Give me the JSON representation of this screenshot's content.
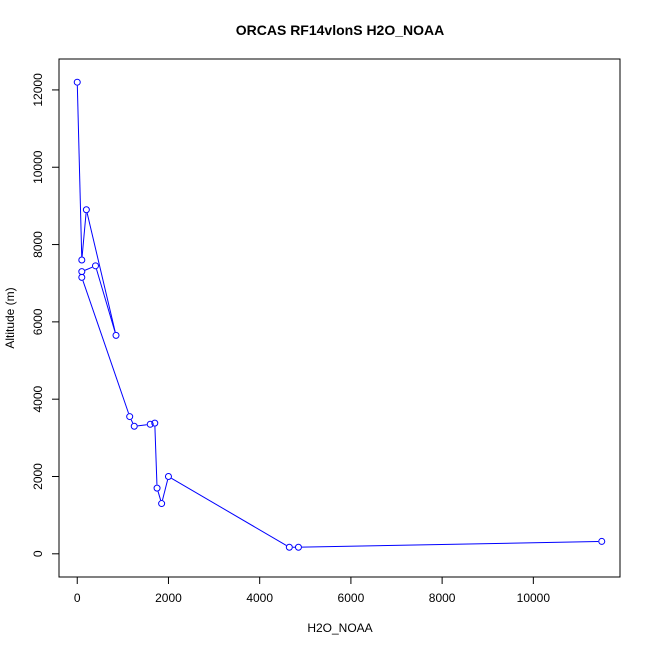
{
  "chart_data": {
    "type": "line",
    "title": "ORCAS RF14vlonS H2O_NOAA",
    "xlabel": "H2O_NOAA",
    "ylabel": "Altitude (m)",
    "xlim": [
      -400,
      11900
    ],
    "ylim": [
      -600,
      12800
    ],
    "x_ticks": [
      0,
      2000,
      4000,
      6000,
      8000,
      10000
    ],
    "y_ticks": [
      0,
      2000,
      4000,
      6000,
      8000,
      10000,
      12000
    ],
    "x_tick_labels": [
      "0",
      "2000",
      "4000",
      "6000",
      "8000",
      "10000"
    ],
    "y_tick_labels": [
      "0",
      "2000",
      "4000",
      "6000",
      "8000",
      "10000",
      "12000"
    ],
    "grid": false,
    "marker": "open-circle",
    "series": [
      {
        "color": "#0000ff",
        "x": [
          0,
          100,
          200,
          850,
          400,
          100,
          100,
          1150,
          1250,
          1600,
          1700,
          1750,
          1850,
          2000,
          4650,
          4850,
          11500
        ],
        "y": [
          12200,
          7600,
          8900,
          5650,
          7450,
          7300,
          7150,
          3550,
          3300,
          3350,
          3380,
          1700,
          1300,
          2000,
          170,
          170,
          320
        ],
        "order": [
          0,
          1,
          2,
          3,
          4,
          5,
          6,
          7,
          8,
          9,
          10,
          11,
          12,
          13,
          14,
          15,
          16
        ]
      }
    ]
  }
}
